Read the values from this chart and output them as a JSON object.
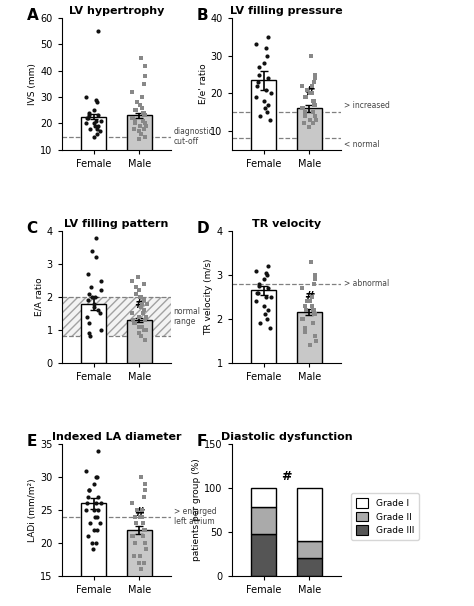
{
  "panel_A": {
    "title": "LV hypertrophy",
    "label": "A",
    "ylabel": "IVS (mm)",
    "ylim": [
      10,
      60
    ],
    "yticks": [
      10,
      20,
      30,
      40,
      50,
      60
    ],
    "bar_female_mean": 22.5,
    "bar_female_sem": 1.0,
    "bar_male_mean": 23.0,
    "bar_male_sem": 0.8,
    "female_dots": [
      55,
      30,
      29,
      28,
      25,
      24,
      23,
      23,
      22,
      22,
      21,
      21,
      20,
      20,
      19,
      19,
      18,
      18,
      17,
      16,
      15
    ],
    "male_dots": [
      45,
      42,
      38,
      35,
      32,
      30,
      28,
      27,
      26,
      25,
      25,
      24,
      24,
      23,
      23,
      22,
      22,
      21,
      21,
      20,
      20,
      19,
      19,
      18,
      18,
      17,
      16,
      15,
      14
    ],
    "dashed_line": 15,
    "dashed_label": "diagnostic\ncut-off",
    "significance": ""
  },
  "panel_B": {
    "title": "LV filling pressure",
    "label": "B",
    "ylabel": "E/e' ratio",
    "ylim": [
      5,
      40
    ],
    "yticks": [
      10,
      20,
      30,
      40
    ],
    "bar_female_mean": 23.5,
    "bar_female_sem": 2.5,
    "bar_male_mean": 16.0,
    "bar_male_sem": 1.0,
    "female_dots": [
      35,
      33,
      32,
      30,
      28,
      27,
      25,
      24,
      23,
      22,
      21,
      20,
      19,
      18,
      17,
      16,
      15,
      14,
      13
    ],
    "male_dots": [
      30,
      25,
      24,
      23,
      22,
      22,
      21,
      20,
      20,
      19,
      19,
      18,
      18,
      17,
      17,
      16,
      16,
      15,
      15,
      14,
      14,
      13,
      13,
      12,
      12,
      11
    ],
    "dashed_line1": 15,
    "dashed_line2": 8,
    "label1": "> increased",
    "label2": "< normal",
    "significance": "#"
  },
  "panel_C": {
    "title": "LV filling pattern",
    "label": "C",
    "ylabel": "E/A ratio",
    "ylim": [
      0,
      4
    ],
    "yticks": [
      0,
      1,
      2,
      3,
      4
    ],
    "bar_female_mean": 1.8,
    "bar_female_sem": 0.2,
    "bar_male_mean": 1.3,
    "bar_male_sem": 0.07,
    "female_dots": [
      3.8,
      3.4,
      3.2,
      2.7,
      2.5,
      2.3,
      2.2,
      2.1,
      2.0,
      2.0,
      1.9,
      1.8,
      1.7,
      1.6,
      1.5,
      1.4,
      1.2,
      1.0,
      0.9,
      0.8
    ],
    "male_dots": [
      2.6,
      2.5,
      2.4,
      2.3,
      2.2,
      2.1,
      2.0,
      2.0,
      1.9,
      1.8,
      1.8,
      1.7,
      1.6,
      1.5,
      1.5,
      1.4,
      1.4,
      1.3,
      1.3,
      1.2,
      1.2,
      1.1,
      1.1,
      1.0,
      1.0,
      0.9,
      0.8,
      0.7
    ],
    "hatch_lower": 0.8,
    "hatch_upper": 2.0,
    "significance": "#",
    "range_label": "normal\nrange"
  },
  "panel_D": {
    "title": "TR velocity",
    "label": "D",
    "ylabel": "TR velocity (m/s)",
    "ylim": [
      1,
      4
    ],
    "yticks": [
      1,
      2,
      3,
      4
    ],
    "bar_female_mean": 2.65,
    "bar_female_sem": 0.1,
    "bar_male_mean": 2.15,
    "bar_male_sem": 0.07,
    "female_dots": [
      3.2,
      3.1,
      3.05,
      3.0,
      2.9,
      2.8,
      2.75,
      2.7,
      2.6,
      2.6,
      2.5,
      2.5,
      2.4,
      2.3,
      2.2,
      2.1,
      2.0,
      1.9,
      1.8
    ],
    "male_dots": [
      3.3,
      3.0,
      2.9,
      2.8,
      2.7,
      2.5,
      2.4,
      2.4,
      2.3,
      2.3,
      2.2,
      2.2,
      2.2,
      2.1,
      2.1,
      2.0,
      2.0,
      1.9,
      1.8,
      1.7,
      1.6,
      1.5,
      1.4
    ],
    "dashed_line": 2.8,
    "dashed_label": "> abnormal",
    "significance": "#"
  },
  "panel_E": {
    "title": "Indexed LA diameter",
    "label": "E",
    "ylabel": "LADi (mm/m²)",
    "ylim": [
      15,
      35
    ],
    "yticks": [
      15,
      20,
      25,
      30,
      35
    ],
    "bar_female_mean": 26.0,
    "bar_female_sem": 0.8,
    "bar_male_mean": 22.0,
    "bar_male_sem": 0.6,
    "female_dots": [
      34,
      31,
      30,
      30,
      29,
      28,
      28,
      27,
      27,
      26,
      26,
      26,
      25,
      25,
      25,
      24,
      24,
      23,
      23,
      22,
      22,
      21,
      20,
      20,
      19
    ],
    "male_dots": [
      30,
      29,
      28,
      27,
      26,
      25,
      25,
      24,
      24,
      24,
      23,
      23,
      22,
      22,
      22,
      21,
      21,
      21,
      20,
      20,
      20,
      19,
      18,
      18,
      17,
      17,
      16
    ],
    "dashed_line": 24,
    "dashed_label": "> enlarged\nleft atrium",
    "significance": "#"
  },
  "panel_F": {
    "title": "Diastolic dysfunction",
    "label": "F",
    "ylabel": "patients per group (%)",
    "ylim": [
      0,
      150
    ],
    "yticks": [
      0,
      50,
      100,
      150
    ],
    "female_gradeIII": 48,
    "female_gradeII": 30,
    "female_gradeI": 22,
    "male_gradeIII": 20,
    "male_gradeII": 20,
    "male_gradeI": 60,
    "significance": "#",
    "color_gradeIII": "#555555",
    "color_gradeII": "#aaaaaa",
    "color_gradeI": "#ffffff"
  },
  "female_bar_color": "#ffffff",
  "male_bar_color": "#c8c8c8",
  "female_dot_color": "#111111",
  "male_dot_color": "#888888",
  "bar_edge_color": "#000000",
  "fig_bg": "#ffffff"
}
